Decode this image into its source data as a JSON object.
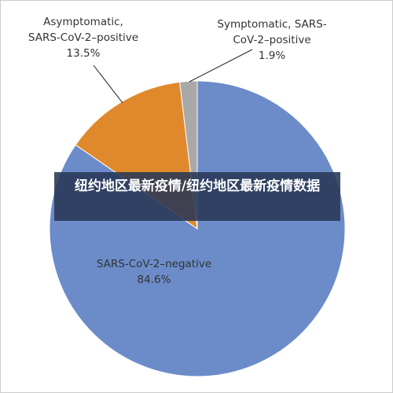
{
  "chart_data": {
    "type": "pie",
    "categories": [
      "SARS-CoV-2–negative",
      "Asymptomatic,\nSARS-CoV-2–positive",
      "Symptomatic, SARS-CoV-2–positive"
    ],
    "values": [
      84.6,
      13.5,
      1.9
    ],
    "value_labels": [
      "84.6%",
      "13.5%",
      "1.9%"
    ],
    "colors": [
      "#6b8cc8",
      "#e0892c",
      "#a9a9a9"
    ]
  },
  "overlay_title": "纽约地区最新疫情/纽约地区最新疫情数据"
}
